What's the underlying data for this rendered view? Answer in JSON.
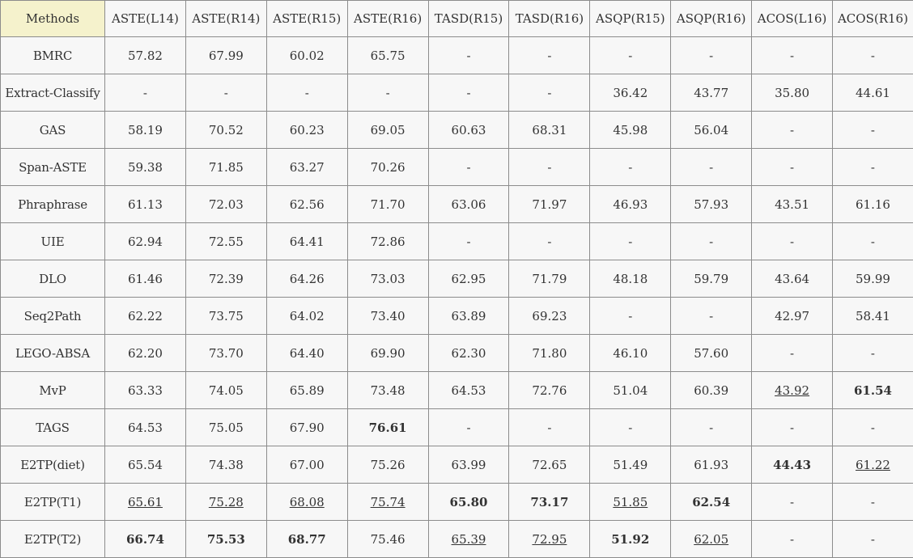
{
  "table": {
    "headers": [
      "Methods",
      "ASTE(L14)",
      "ASTE(R14)",
      "ASTE(R15)",
      "ASTE(R16)",
      "TASD(R15)",
      "TASD(R16)",
      "ASQP(R15)",
      "ASQP(R16)",
      "ACOS(L16)",
      "ACOS(R16)"
    ],
    "rows": [
      {
        "method": "BMRC",
        "cells": [
          {
            "v": "57.82"
          },
          {
            "v": "67.99"
          },
          {
            "v": "60.02"
          },
          {
            "v": "65.75"
          },
          {
            "v": "-"
          },
          {
            "v": "-"
          },
          {
            "v": "-"
          },
          {
            "v": "-"
          },
          {
            "v": "-"
          },
          {
            "v": "-"
          }
        ]
      },
      {
        "method": "Extract-Classify",
        "cells": [
          {
            "v": "-"
          },
          {
            "v": "-"
          },
          {
            "v": "-"
          },
          {
            "v": "-"
          },
          {
            "v": "-"
          },
          {
            "v": "-"
          },
          {
            "v": "36.42"
          },
          {
            "v": "43.77"
          },
          {
            "v": "35.80"
          },
          {
            "v": "44.61"
          }
        ]
      },
      {
        "method": "GAS",
        "cells": [
          {
            "v": "58.19"
          },
          {
            "v": "70.52"
          },
          {
            "v": "60.23"
          },
          {
            "v": "69.05"
          },
          {
            "v": "60.63"
          },
          {
            "v": "68.31"
          },
          {
            "v": "45.98"
          },
          {
            "v": "56.04"
          },
          {
            "v": "-"
          },
          {
            "v": "-"
          }
        ]
      },
      {
        "method": "Span-ASTE",
        "cells": [
          {
            "v": "59.38"
          },
          {
            "v": "71.85"
          },
          {
            "v": "63.27"
          },
          {
            "v": "70.26"
          },
          {
            "v": "-"
          },
          {
            "v": "-"
          },
          {
            "v": "-"
          },
          {
            "v": "-"
          },
          {
            "v": "-"
          },
          {
            "v": "-"
          }
        ]
      },
      {
        "method": "Phraphrase",
        "cells": [
          {
            "v": "61.13"
          },
          {
            "v": "72.03"
          },
          {
            "v": "62.56"
          },
          {
            "v": "71.70"
          },
          {
            "v": "63.06"
          },
          {
            "v": "71.97"
          },
          {
            "v": "46.93"
          },
          {
            "v": "57.93"
          },
          {
            "v": "43.51"
          },
          {
            "v": "61.16"
          }
        ]
      },
      {
        "method": "UIE",
        "cells": [
          {
            "v": "62.94"
          },
          {
            "v": "72.55"
          },
          {
            "v": "64.41"
          },
          {
            "v": "72.86"
          },
          {
            "v": "-"
          },
          {
            "v": "-"
          },
          {
            "v": "-"
          },
          {
            "v": "-"
          },
          {
            "v": "-"
          },
          {
            "v": "-"
          }
        ]
      },
      {
        "method": "DLO",
        "cells": [
          {
            "v": "61.46"
          },
          {
            "v": "72.39"
          },
          {
            "v": "64.26"
          },
          {
            "v": "73.03"
          },
          {
            "v": "62.95"
          },
          {
            "v": "71.79"
          },
          {
            "v": "48.18"
          },
          {
            "v": "59.79"
          },
          {
            "v": "43.64"
          },
          {
            "v": "59.99"
          }
        ]
      },
      {
        "method": "Seq2Path",
        "cells": [
          {
            "v": "62.22"
          },
          {
            "v": "73.75"
          },
          {
            "v": "64.02"
          },
          {
            "v": "73.40"
          },
          {
            "v": "63.89"
          },
          {
            "v": "69.23"
          },
          {
            "v": "-"
          },
          {
            "v": "-"
          },
          {
            "v": "42.97"
          },
          {
            "v": "58.41"
          }
        ]
      },
      {
        "method": "LEGO-ABSA",
        "cells": [
          {
            "v": "62.20"
          },
          {
            "v": "73.70"
          },
          {
            "v": "64.40"
          },
          {
            "v": "69.90"
          },
          {
            "v": "62.30"
          },
          {
            "v": "71.80"
          },
          {
            "v": "46.10"
          },
          {
            "v": "57.60"
          },
          {
            "v": "-"
          },
          {
            "v": "-"
          }
        ]
      },
      {
        "method": "MvP",
        "cells": [
          {
            "v": "63.33"
          },
          {
            "v": "74.05"
          },
          {
            "v": "65.89"
          },
          {
            "v": "73.48"
          },
          {
            "v": "64.53"
          },
          {
            "v": "72.76"
          },
          {
            "v": "51.04"
          },
          {
            "v": "60.39"
          },
          {
            "v": "43.92",
            "u": true
          },
          {
            "v": "61.54",
            "b": true
          }
        ]
      },
      {
        "method": "TAGS",
        "cells": [
          {
            "v": "64.53"
          },
          {
            "v": "75.05"
          },
          {
            "v": "67.90"
          },
          {
            "v": "76.61",
            "b": true
          },
          {
            "v": "-"
          },
          {
            "v": "-"
          },
          {
            "v": "-"
          },
          {
            "v": "-"
          },
          {
            "v": "-"
          },
          {
            "v": "-"
          }
        ]
      },
      {
        "method": "E2TP(diet)",
        "cells": [
          {
            "v": "65.54"
          },
          {
            "v": "74.38"
          },
          {
            "v": "67.00"
          },
          {
            "v": "75.26"
          },
          {
            "v": "63.99"
          },
          {
            "v": "72.65"
          },
          {
            "v": "51.49"
          },
          {
            "v": "61.93"
          },
          {
            "v": "44.43",
            "b": true
          },
          {
            "v": "61.22",
            "u": true
          }
        ]
      },
      {
        "method": "E2TP(T1)",
        "cells": [
          {
            "v": "65.61",
            "u": true
          },
          {
            "v": "75.28",
            "u": true
          },
          {
            "v": "68.08",
            "u": true
          },
          {
            "v": "75.74",
            "u": true
          },
          {
            "v": "65.80",
            "b": true
          },
          {
            "v": "73.17",
            "b": true
          },
          {
            "v": "51.85",
            "u": true
          },
          {
            "v": "62.54",
            "b": true
          },
          {
            "v": "-"
          },
          {
            "v": "-"
          }
        ]
      },
      {
        "method": "E2TP(T2)",
        "cells": [
          {
            "v": "66.74",
            "b": true
          },
          {
            "v": "75.53",
            "b": true
          },
          {
            "v": "68.77",
            "b": true
          },
          {
            "v": "75.46"
          },
          {
            "v": "65.39",
            "u": true
          },
          {
            "v": "72.95",
            "u": true
          },
          {
            "v": "51.92",
            "b": true
          },
          {
            "v": "62.05",
            "u": true
          },
          {
            "v": "-"
          },
          {
            "v": "-"
          }
        ]
      }
    ]
  }
}
